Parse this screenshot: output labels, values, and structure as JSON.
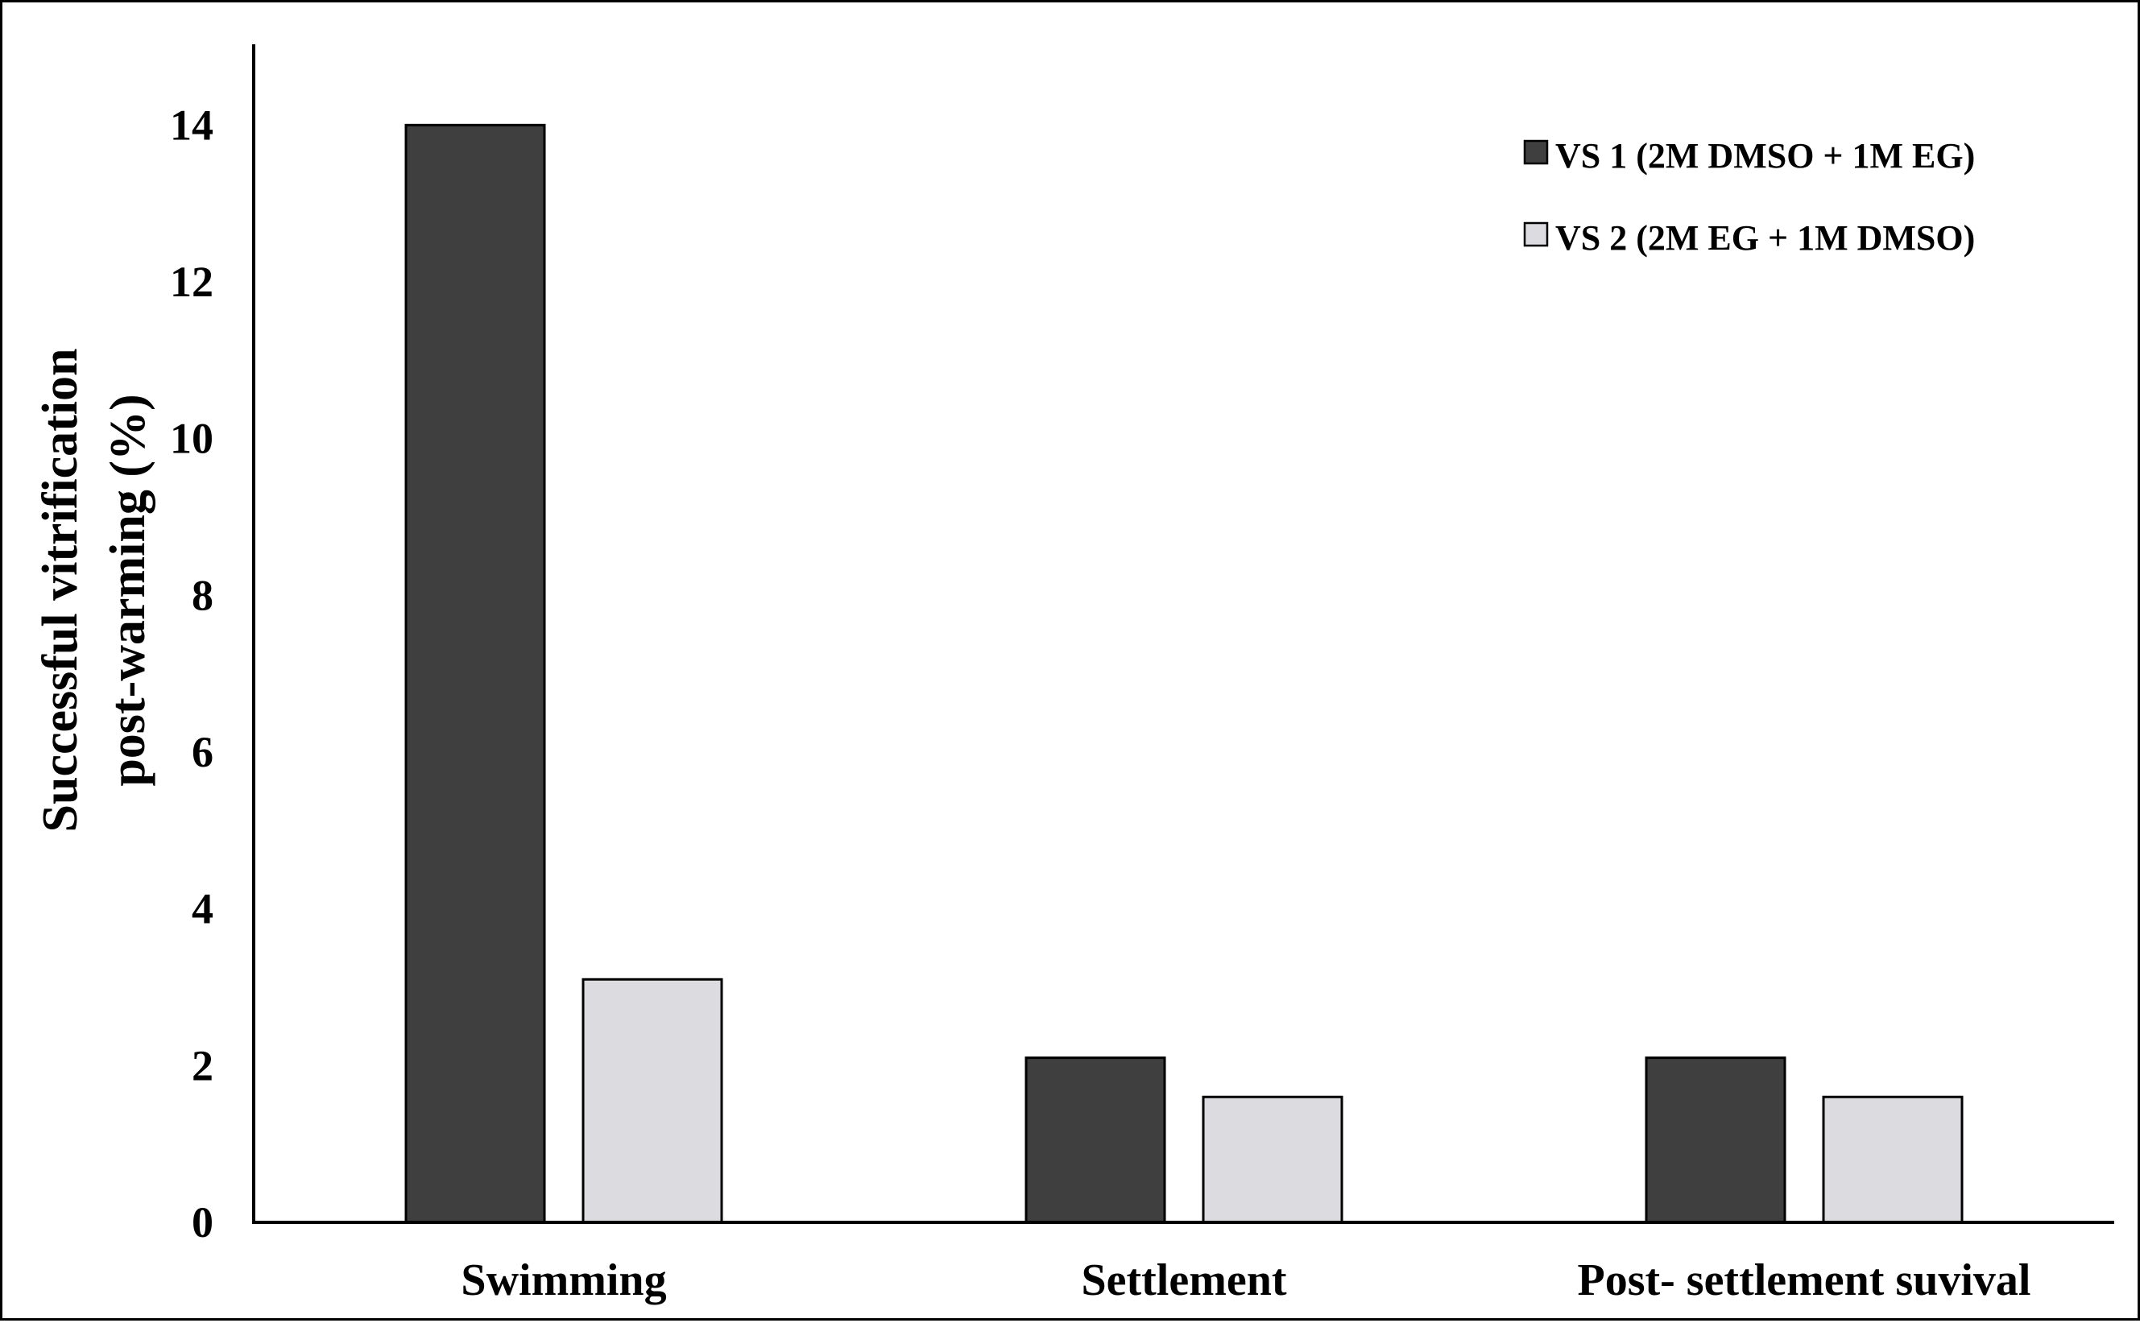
{
  "chart_data": {
    "type": "bar",
    "title": "",
    "xlabel": "",
    "ylabel": [
      "Successful vitrification",
      "post-warming (%)"
    ],
    "categories": [
      "Swimming",
      "Settlement",
      "Post- settlement suvival"
    ],
    "series": [
      {
        "name": "VS 1 (2M DMSO + 1M EG)",
        "color": "#3f3f3f",
        "values": [
          14.0,
          2.1,
          2.1
        ]
      },
      {
        "name": "VS 2 (2M EG + 1M DMSO)",
        "color": "#dcdce0",
        "values": [
          3.1,
          1.6,
          1.6
        ]
      }
    ],
    "ylim": [
      0,
      15
    ],
    "yticks": [
      0,
      2,
      4,
      6,
      8,
      10,
      12,
      14
    ],
    "grid": false,
    "legend_position": "top-right"
  }
}
